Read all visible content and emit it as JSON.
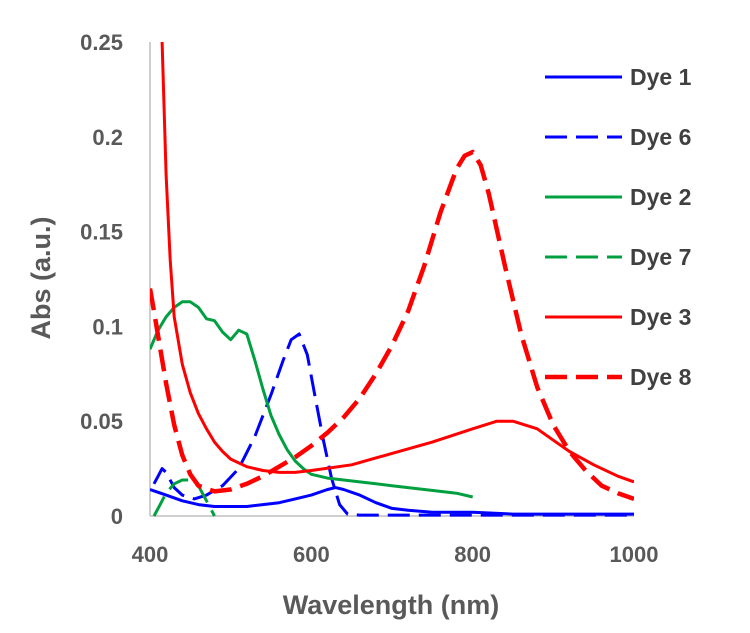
{
  "chart_data": {
    "type": "line",
    "title": "",
    "xlabel": "Wavelength (nm)",
    "ylabel": "Abs (a.u.)",
    "xlim": [
      400,
      1000
    ],
    "ylim": [
      0,
      0.25
    ],
    "xticks": [
      400,
      600,
      800,
      1000
    ],
    "yticks": [
      0,
      0.05,
      0.1,
      0.15,
      0.2,
      0.25
    ],
    "xtick_labels": [
      "400",
      "600",
      "800",
      "1000"
    ],
    "ytick_labels": [
      "0",
      "0.05",
      "0.1",
      "0.15",
      "0.2",
      "0.25"
    ],
    "grid": false,
    "legend_position": "right",
    "series": [
      {
        "name": "Dye 1",
        "color": "#0000ff",
        "dash": "solid",
        "x": [
          400,
          420,
          440,
          460,
          480,
          500,
          520,
          540,
          560,
          580,
          600,
          620,
          630,
          640,
          660,
          680,
          700,
          720,
          750,
          800,
          850,
          900,
          950,
          1000
        ],
        "y": [
          0.014,
          0.011,
          0.008,
          0.006,
          0.005,
          0.005,
          0.005,
          0.006,
          0.007,
          0.009,
          0.011,
          0.014,
          0.015,
          0.014,
          0.011,
          0.007,
          0.004,
          0.003,
          0.002,
          0.002,
          0.001,
          0.001,
          0.001,
          0.001
        ]
      },
      {
        "name": "Dye 6",
        "color": "#0000ff",
        "dash": "long",
        "x": [
          405,
          410,
          415,
          420,
          430,
          440,
          455,
          470,
          490,
          510,
          530,
          550,
          565,
          575,
          585,
          595,
          605,
          615,
          625,
          635,
          645,
          660,
          680,
          700,
          750,
          800,
          850,
          900,
          950,
          1000
        ],
        "y": [
          0.017,
          0.021,
          0.025,
          0.023,
          0.015,
          0.011,
          0.009,
          0.011,
          0.016,
          0.025,
          0.042,
          0.064,
          0.082,
          0.093,
          0.096,
          0.085,
          0.062,
          0.04,
          0.02,
          0.006,
          0.001,
          0.0005,
          0.0005,
          0.0005,
          0.0005,
          0.0005,
          0.0005,
          0.0005,
          0.0005,
          0.0005
        ]
      },
      {
        "name": "Dye 2",
        "color": "#00a040",
        "dash": "solid",
        "x": [
          400,
          410,
          420,
          430,
          440,
          450,
          460,
          470,
          480,
          490,
          500,
          510,
          520,
          530,
          540,
          550,
          560,
          570,
          580,
          590,
          600,
          620,
          640,
          660,
          680,
          700,
          720,
          740,
          760,
          780,
          800
        ],
        "y": [
          0.088,
          0.098,
          0.105,
          0.11,
          0.113,
          0.113,
          0.11,
          0.104,
          0.103,
          0.097,
          0.093,
          0.098,
          0.096,
          0.082,
          0.067,
          0.053,
          0.043,
          0.035,
          0.029,
          0.025,
          0.022,
          0.02,
          0.019,
          0.018,
          0.017,
          0.016,
          0.015,
          0.014,
          0.013,
          0.012,
          0.01
        ]
      },
      {
        "name": "Dye 7",
        "color": "#00a040",
        "dash": "long",
        "x": [
          405,
          410,
          420,
          430,
          440,
          450,
          460,
          470,
          480
        ],
        "y": [
          0.0,
          0.004,
          0.012,
          0.017,
          0.019,
          0.019,
          0.016,
          0.008,
          0.0
        ]
      },
      {
        "name": "Dye 3",
        "color": "#ff0000",
        "dash": "solid",
        "x": [
          415,
          420,
          425,
          430,
          440,
          450,
          460,
          470,
          480,
          490,
          500,
          520,
          540,
          560,
          580,
          600,
          650,
          700,
          750,
          800,
          830,
          850,
          880,
          900,
          920,
          950,
          980,
          1000
        ],
        "y": [
          0.25,
          0.18,
          0.135,
          0.105,
          0.08,
          0.065,
          0.054,
          0.046,
          0.039,
          0.034,
          0.03,
          0.026,
          0.024,
          0.023,
          0.023,
          0.024,
          0.027,
          0.033,
          0.039,
          0.046,
          0.05,
          0.05,
          0.046,
          0.04,
          0.034,
          0.027,
          0.021,
          0.018
        ]
      },
      {
        "name": "Dye 8",
        "color": "#ff0000",
        "dash": "long",
        "x": [
          400,
          405,
          410,
          420,
          430,
          440,
          450,
          460,
          480,
          500,
          520,
          540,
          560,
          580,
          600,
          620,
          640,
          660,
          680,
          700,
          720,
          740,
          760,
          780,
          790,
          800,
          810,
          820,
          840,
          860,
          880,
          900,
          920,
          940,
          960,
          980,
          1000
        ],
        "y": [
          0.12,
          0.108,
          0.095,
          0.07,
          0.048,
          0.032,
          0.022,
          0.016,
          0.013,
          0.014,
          0.017,
          0.021,
          0.026,
          0.031,
          0.037,
          0.044,
          0.052,
          0.062,
          0.075,
          0.09,
          0.108,
          0.132,
          0.16,
          0.183,
          0.19,
          0.192,
          0.185,
          0.17,
          0.132,
          0.096,
          0.068,
          0.048,
          0.034,
          0.024,
          0.016,
          0.012,
          0.009
        ]
      }
    ]
  }
}
